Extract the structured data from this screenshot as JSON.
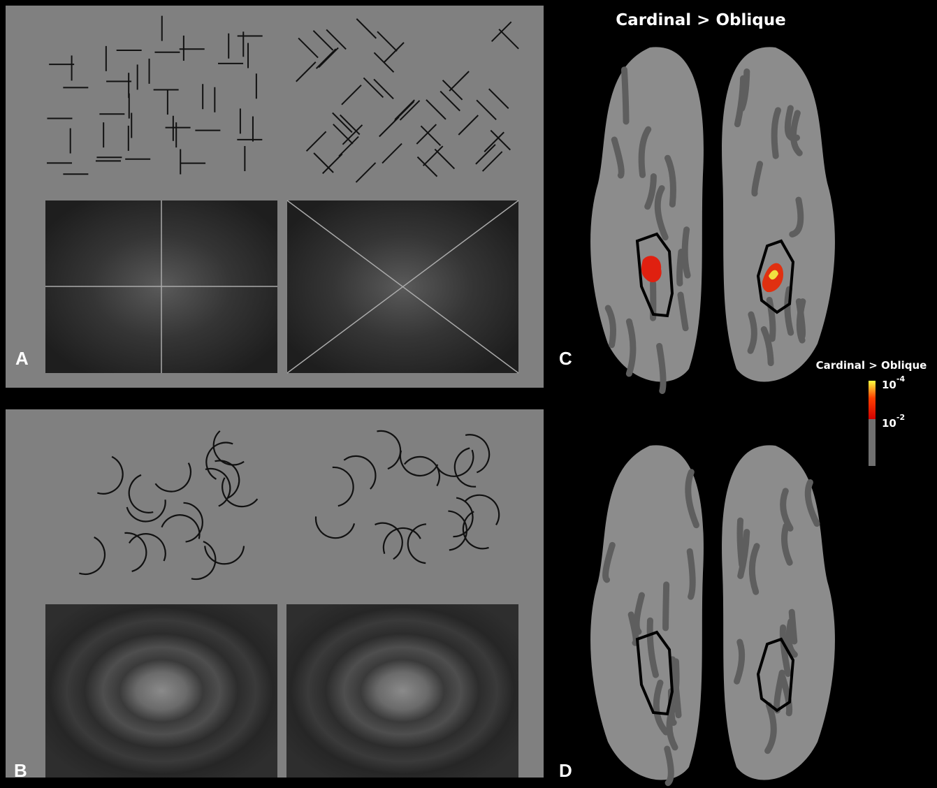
{
  "title": "Cardinal > Oblique",
  "panels": [
    {
      "label": "A"
    },
    {
      "label": "B"
    },
    {
      "label": "C"
    },
    {
      "label": "D"
    }
  ],
  "colorbar": {
    "title": "Cardinal > Oblique",
    "ticks": [
      {
        "base": "10",
        "exponent": "-4"
      },
      {
        "base": "10",
        "exponent": "-2"
      }
    ]
  }
}
